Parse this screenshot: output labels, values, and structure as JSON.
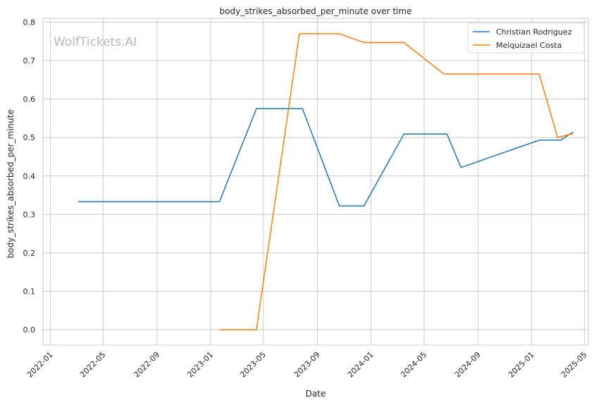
{
  "chart_data": {
    "type": "line",
    "title": "body_strikes_absorbed_per_minute over time",
    "xlabel": "Date",
    "ylabel": "body_strikes_absorbed_per_minute",
    "watermark": "WolfTickets.AI",
    "xlim": [
      "2021-12-15",
      "2025-05-10"
    ],
    "ylim": [
      -0.04,
      0.81
    ],
    "x_ticks": [
      "2022-01",
      "2022-05",
      "2022-09",
      "2023-01",
      "2023-05",
      "2023-09",
      "2024-01",
      "2024-05",
      "2024-09",
      "2025-01",
      "2025-05"
    ],
    "y_ticks": [
      0.0,
      0.1,
      0.2,
      0.3,
      0.4,
      0.5,
      0.6,
      0.7,
      0.8
    ],
    "grid": true,
    "legend_position": "top-right",
    "series": [
      {
        "name": "Christian Rodriguez",
        "color": "#1f77b4",
        "points": [
          {
            "x": "2022-03-05",
            "y": 0.333
          },
          {
            "x": "2023-01-21",
            "y": 0.333
          },
          {
            "x": "2023-04-15",
            "y": 0.575
          },
          {
            "x": "2023-07-29",
            "y": 0.575
          },
          {
            "x": "2023-10-21",
            "y": 0.322
          },
          {
            "x": "2023-12-16",
            "y": 0.322
          },
          {
            "x": "2024-03-16",
            "y": 0.509
          },
          {
            "x": "2024-06-22",
            "y": 0.509
          },
          {
            "x": "2024-07-24",
            "y": 0.422
          },
          {
            "x": "2025-01-18",
            "y": 0.493
          },
          {
            "x": "2025-03-08",
            "y": 0.493
          },
          {
            "x": "2025-04-05",
            "y": 0.514
          }
        ]
      },
      {
        "name": "Melquizael Costa",
        "color": "#ff7f0e",
        "points": [
          {
            "x": "2023-01-21",
            "y": 0.0
          },
          {
            "x": "2023-04-15",
            "y": 0.0
          },
          {
            "x": "2023-07-22",
            "y": 0.77
          },
          {
            "x": "2023-10-21",
            "y": 0.77
          },
          {
            "x": "2023-12-16",
            "y": 0.747
          },
          {
            "x": "2024-03-16",
            "y": 0.747
          },
          {
            "x": "2024-06-15",
            "y": 0.665
          },
          {
            "x": "2025-01-18",
            "y": 0.665
          },
          {
            "x": "2025-03-01",
            "y": 0.5
          },
          {
            "x": "2025-04-05",
            "y": 0.51
          }
        ]
      }
    ]
  }
}
